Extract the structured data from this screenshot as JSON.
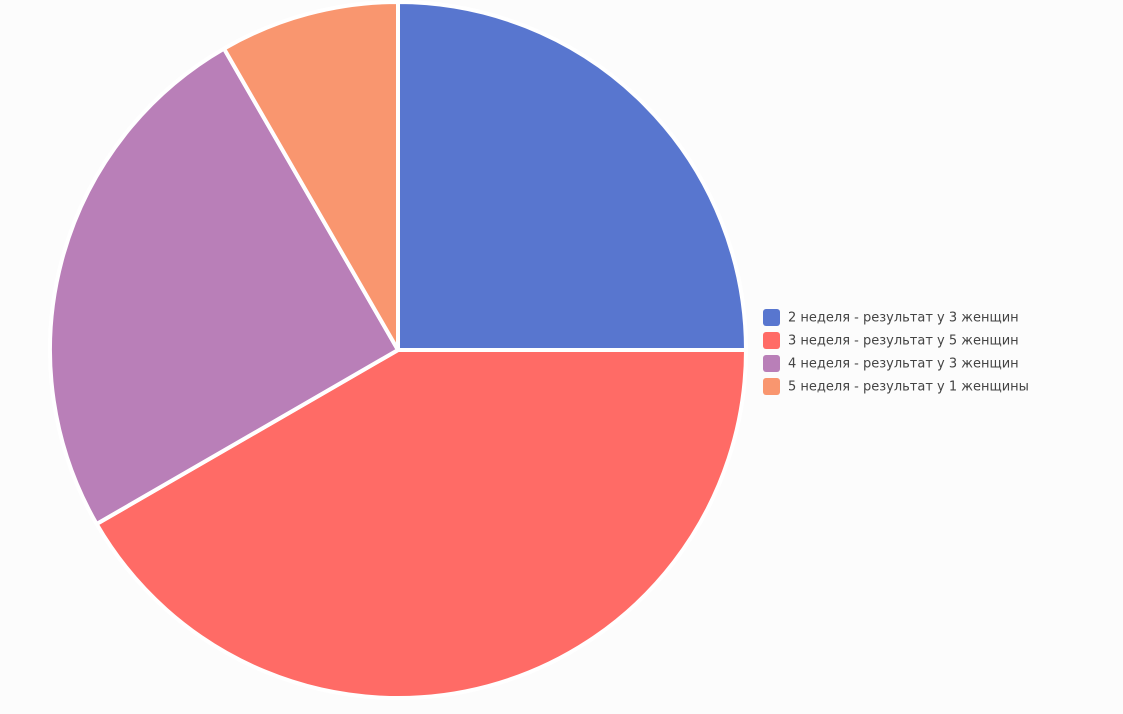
{
  "chart_data": {
    "type": "pie",
    "categories": [
      "2 неделя - результат у 3 женщин",
      "3 неделя - результат у 5 женщин",
      "4 неделя - результат у 3 женщин",
      "5 неделя - результат у 1 женщины"
    ],
    "values": [
      3,
      5,
      3,
      1
    ],
    "colors": [
      "#5876cf",
      "#ff6b66",
      "#b97fb8",
      "#f9966f"
    ],
    "legend": "right"
  }
}
